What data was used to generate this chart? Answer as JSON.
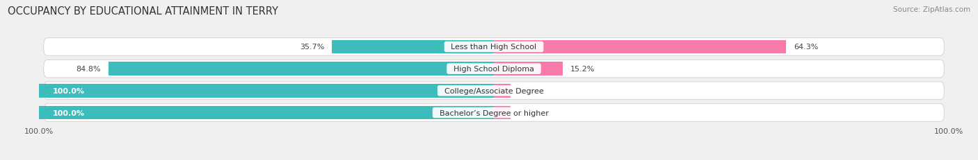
{
  "title": "OCCUPANCY BY EDUCATIONAL ATTAINMENT IN TERRY",
  "source": "Source: ZipAtlas.com",
  "categories": [
    "Less than High School",
    "High School Diploma",
    "College/Associate Degree",
    "Bachelor’s Degree or higher"
  ],
  "owner_pct": [
    35.7,
    84.8,
    100.0,
    100.0
  ],
  "renter_pct": [
    64.3,
    15.2,
    0.0,
    0.0
  ],
  "owner_color": "#3dbcbc",
  "renter_color": "#f87aaa",
  "background_color": "#f0f0f0",
  "bar_bg_color": "#ffffff",
  "title_fontsize": 10.5,
  "source_fontsize": 7.5,
  "label_fontsize": 8,
  "pct_fontsize": 8,
  "tick_fontsize": 8,
  "legend_fontsize": 8.5,
  "figsize": [
    14.06,
    2.32
  ],
  "dpi": 100
}
